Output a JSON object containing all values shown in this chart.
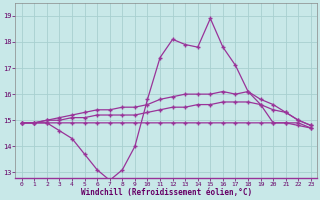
{
  "xlabel": "Windchill (Refroidissement éolien,°C)",
  "background_color": "#c8e8e8",
  "grid_color": "#a8d0d0",
  "line_color": "#993399",
  "x": [
    0,
    1,
    2,
    3,
    4,
    5,
    6,
    7,
    8,
    9,
    10,
    11,
    12,
    13,
    14,
    15,
    16,
    17,
    18,
    19,
    20,
    21,
    22,
    23
  ],
  "y_main": [
    14.9,
    14.9,
    14.9,
    14.6,
    14.3,
    13.7,
    13.1,
    12.7,
    13.1,
    14.0,
    15.8,
    17.4,
    18.1,
    17.9,
    17.8,
    18.9,
    17.8,
    17.1,
    16.1,
    15.6,
    14.9,
    14.9,
    14.8,
    14.7
  ],
  "y_line2": [
    14.9,
    14.9,
    14.9,
    14.9,
    14.9,
    14.9,
    14.9,
    14.9,
    14.9,
    14.9,
    14.9,
    14.9,
    14.9,
    14.9,
    14.9,
    14.9,
    14.9,
    14.9,
    14.9,
    14.9,
    14.9,
    14.9,
    14.9,
    14.7
  ],
  "y_line3": [
    14.9,
    14.9,
    15.0,
    15.0,
    15.1,
    15.1,
    15.2,
    15.2,
    15.2,
    15.2,
    15.3,
    15.4,
    15.5,
    15.5,
    15.6,
    15.6,
    15.7,
    15.7,
    15.7,
    15.6,
    15.4,
    15.3,
    15.0,
    14.8
  ],
  "y_line4": [
    14.9,
    14.9,
    15.0,
    15.1,
    15.2,
    15.3,
    15.4,
    15.4,
    15.5,
    15.5,
    15.6,
    15.8,
    15.9,
    16.0,
    16.0,
    16.0,
    16.1,
    16.0,
    16.1,
    15.8,
    15.6,
    15.3,
    15.0,
    14.8
  ],
  "ylim": [
    12.8,
    19.5
  ],
  "yticks": [
    13,
    14,
    15,
    16,
    17,
    18,
    19
  ],
  "xticks": [
    0,
    1,
    2,
    3,
    4,
    5,
    6,
    7,
    8,
    9,
    10,
    11,
    12,
    13,
    14,
    15,
    16,
    17,
    18,
    19,
    20,
    21,
    22,
    23
  ]
}
